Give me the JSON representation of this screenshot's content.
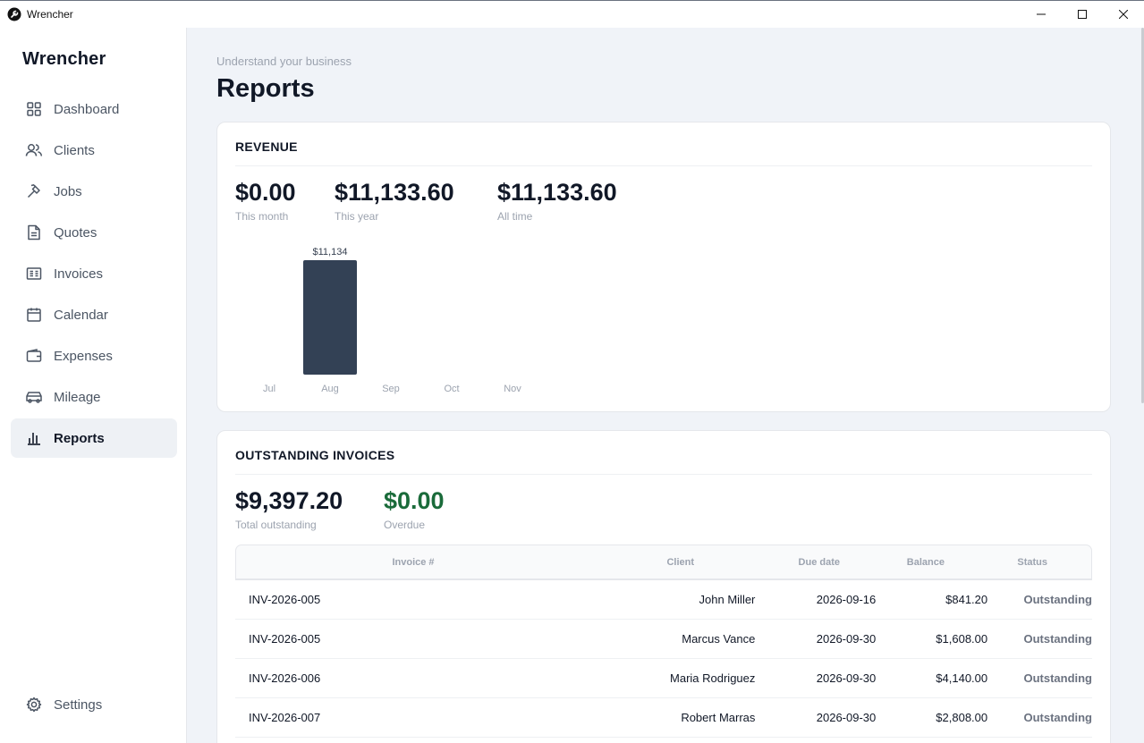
{
  "window": {
    "title": "Wrencher"
  },
  "sidebar": {
    "brand": "Wrencher",
    "items": [
      {
        "label": "Dashboard",
        "icon": "dashboard-icon"
      },
      {
        "label": "Clients",
        "icon": "users-icon"
      },
      {
        "label": "Jobs",
        "icon": "hammer-icon"
      },
      {
        "label": "Quotes",
        "icon": "document-icon"
      },
      {
        "label": "Invoices",
        "icon": "invoice-icon"
      },
      {
        "label": "Calendar",
        "icon": "calendar-icon"
      },
      {
        "label": "Expenses",
        "icon": "wallet-icon"
      },
      {
        "label": "Mileage",
        "icon": "car-icon"
      },
      {
        "label": "Reports",
        "icon": "bar-chart-icon",
        "active": true
      }
    ],
    "settings_label": "Settings"
  },
  "header": {
    "subtitle": "Understand your business",
    "title": "Reports"
  },
  "revenue": {
    "title": "REVENUE",
    "stats": [
      {
        "value": "$0.00",
        "label": "This month"
      },
      {
        "value": "$11,133.60",
        "label": "This year"
      },
      {
        "value": "$11,133.60",
        "label": "All time"
      }
    ]
  },
  "chart_data": {
    "type": "bar",
    "categories": [
      "Jul",
      "Aug",
      "Sep",
      "Oct",
      "Nov"
    ],
    "values": [
      0,
      11133.6,
      0,
      0,
      0
    ],
    "data_labels": [
      "",
      "$11,134",
      "",
      "",
      ""
    ],
    "bar_color": "#334155"
  },
  "outstanding": {
    "title": "OUTSTANDING INVOICES",
    "total_value": "$9,397.20",
    "total_label": "Total outstanding",
    "overdue_value": "$0.00",
    "overdue_label": "Overdue",
    "overdue_color": "#1a6b3a",
    "columns": [
      "Invoice #",
      "Client",
      "Due date",
      "Balance",
      "Status"
    ],
    "rows": [
      {
        "invoice": "INV-2026-005",
        "client": "John Miller",
        "due": "2026-09-16",
        "balance": "$841.20",
        "status": "Outstanding"
      },
      {
        "invoice": "INV-2026-005",
        "client": "Marcus Vance",
        "due": "2026-09-30",
        "balance": "$1,608.00",
        "status": "Outstanding"
      },
      {
        "invoice": "INV-2026-006",
        "client": "Maria Rodriguez",
        "due": "2026-09-30",
        "balance": "$4,140.00",
        "status": "Outstanding"
      },
      {
        "invoice": "INV-2026-007",
        "client": "Robert Marras",
        "due": "2026-09-30",
        "balance": "$2,808.00",
        "status": "Outstanding"
      }
    ]
  }
}
